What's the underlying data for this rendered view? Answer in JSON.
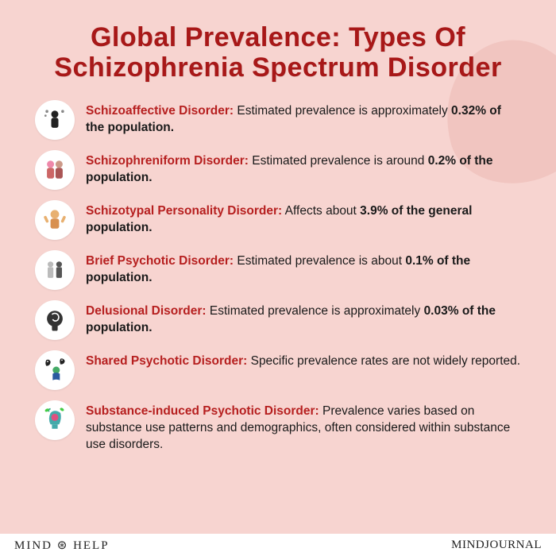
{
  "colors": {
    "background": "#f7d4d0",
    "accent_blob": "#e8b0a8",
    "title": "#a81818",
    "item_name": "#b61f1f",
    "body_text": "#1a1a1a",
    "icon_bg": "#ffffff",
    "footer_bg": "#ffffff"
  },
  "typography": {
    "title_fontsize": 34,
    "body_fontsize": 15.5,
    "footer_fontsize": 15
  },
  "title": "Global Prevalence: Types Of Schizophrenia Spectrum Disorder",
  "items": [
    {
      "icon": "figure-thoughts",
      "name": "Schizoaffective Disorder:",
      "lead": " Estimated prevalence is approximately ",
      "bold": "0.32% of the population.",
      "tail": ""
    },
    {
      "icon": "two-people",
      "name": "Schizophreniform Disorder:",
      "lead": " Estimated prevalence is around ",
      "bold": "0.2% of the population.",
      "tail": ""
    },
    {
      "icon": "person-waving",
      "name": "Schizotypal Personality Disorder:",
      "lead": " Affects about ",
      "bold": "3.9% of the general population.",
      "tail": ""
    },
    {
      "icon": "two-figures",
      "name": "Brief Psychotic Disorder:",
      "lead": " Estimated prevalence is about ",
      "bold": "0.1% of the population.",
      "tail": ""
    },
    {
      "icon": "head-swirl",
      "name": "Delusional Disorder:",
      "lead": " Estimated prevalence is approximately ",
      "bold": "0.03% of the population.",
      "tail": ""
    },
    {
      "icon": "person-ghosts",
      "name": "Shared Psychotic Disorder:",
      "lead": " Specific prevalence rates are not widely reported.",
      "bold": "",
      "tail": ""
    },
    {
      "icon": "head-leaves",
      "name": "Substance-induced Psychotic Disorder:",
      "lead": " Prevalence varies based on substance use patterns and demographics, often considered within substance use disorders.",
      "bold": "",
      "tail": ""
    }
  ],
  "footer": {
    "left": "MIND ⊛ HELP",
    "right": "MINDJOURNAL"
  }
}
